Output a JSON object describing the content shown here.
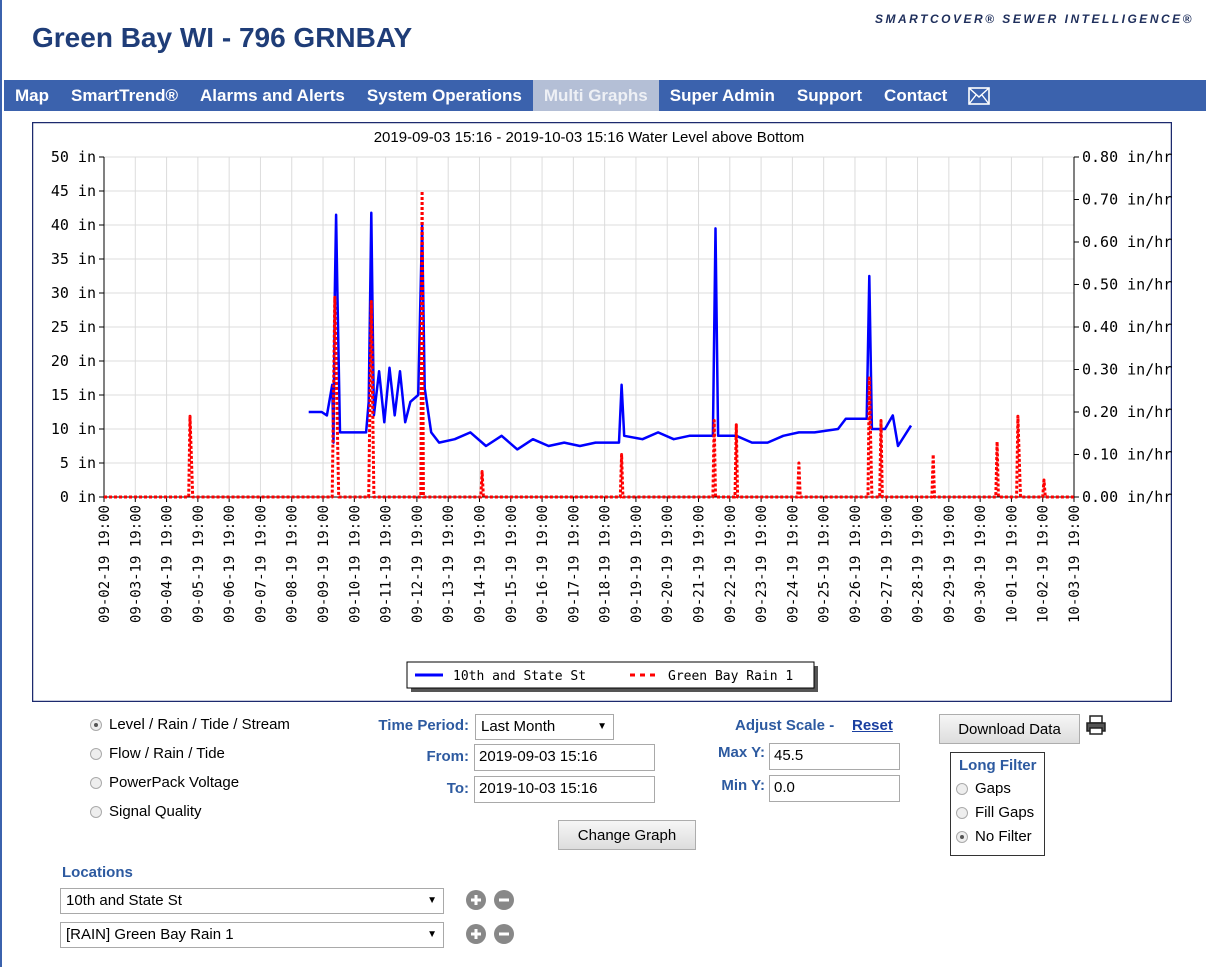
{
  "header": {
    "title": "Green Bay WI - 796 GRNBAY",
    "brand": "SMARTCOVER® SEWER INTELLIGENCE®"
  },
  "nav": {
    "items": [
      "Map",
      "SmartTrend®",
      "Alarms and Alerts",
      "System Operations",
      "Multi Graphs",
      "Super Admin",
      "Support",
      "Contact"
    ],
    "active": "Multi Graphs"
  },
  "chart_data": {
    "type": "line",
    "title": "2019-09-03 15:16 - 2019-10-03 15:16 Water Level above Bottom",
    "xlim": [
      "09-02-19 19:00",
      "10-03-19 19:00"
    ],
    "xticks": [
      "09-02-19 19:00",
      "09-03-19 19:00",
      "09-04-19 19:00",
      "09-05-19 19:00",
      "09-06-19 19:00",
      "09-07-19 19:00",
      "09-08-19 19:00",
      "09-09-19 19:00",
      "09-10-19 19:00",
      "09-11-19 19:00",
      "09-12-19 19:00",
      "09-13-19 19:00",
      "09-14-19 19:00",
      "09-15-19 19:00",
      "09-16-19 19:00",
      "09-17-19 19:00",
      "09-18-19 19:00",
      "09-19-19 19:00",
      "09-20-19 19:00",
      "09-21-19 19:00",
      "09-22-19 19:00",
      "09-23-19 19:00",
      "09-24-19 19:00",
      "09-25-19 19:00",
      "09-26-19 19:00",
      "09-27-19 19:00",
      "09-28-19 19:00",
      "09-29-19 19:00",
      "09-30-19 19:00",
      "10-01-19 19:00",
      "10-02-19 19:00",
      "10-03-19 19:00"
    ],
    "ylim": [
      0,
      50
    ],
    "yticks": [
      {
        "value": 0,
        "label": "0 in"
      },
      {
        "value": 5,
        "label": "5 in"
      },
      {
        "value": 10,
        "label": "10 in"
      },
      {
        "value": 15,
        "label": "15 in"
      },
      {
        "value": 20,
        "label": "20 in"
      },
      {
        "value": 25,
        "label": "25 in"
      },
      {
        "value": 30,
        "label": "30 in"
      },
      {
        "value": 35,
        "label": "35 in"
      },
      {
        "value": 40,
        "label": "40 in"
      },
      {
        "value": 45,
        "label": "45 in"
      },
      {
        "value": 50,
        "label": "50 in"
      }
    ],
    "y2lim": [
      0,
      0.8
    ],
    "y2ticks": [
      {
        "value": 0,
        "label": "0.00 in/hr"
      },
      {
        "value": 0.1,
        "label": "0.10 in/hr"
      },
      {
        "value": 0.2,
        "label": "0.20 in/hr"
      },
      {
        "value": 0.3,
        "label": "0.30 in/hr"
      },
      {
        "value": 0.4,
        "label": "0.40 in/hr"
      },
      {
        "value": 0.5,
        "label": "0.50 in/hr"
      },
      {
        "value": 0.6,
        "label": "0.60 in/hr"
      },
      {
        "value": 0.7,
        "label": "0.70 in/hr"
      },
      {
        "value": 0.8,
        "label": "0.80 in/hr"
      }
    ],
    "grid": true,
    "series": [
      {
        "name": "10th and State St",
        "color": "#0000ff",
        "style": "solid",
        "x": [
          "09-09-19 08:00",
          "09-09-19 18:00",
          "09-09-19 22:00",
          "09-10-19 02:00",
          "09-10-19 03:00",
          "09-10-19 04:00",
          "09-10-19 05:00",
          "09-10-19 06:00",
          "09-10-19 08:00",
          "09-11-19 04:00",
          "09-11-19 06:00",
          "09-11-19 08:00",
          "09-11-19 10:00",
          "09-11-19 14:00",
          "09-11-19 18:00",
          "09-11-19 22:00",
          "09-12-19 02:00",
          "09-12-19 06:00",
          "09-12-19 10:00",
          "09-12-19 14:00",
          "09-12-19 20:00",
          "09-12-19 23:00",
          "09-13-19 01:00",
          "09-13-19 06:00",
          "09-13-19 12:00",
          "09-14-19 00:00",
          "09-14-19 12:00",
          "09-15-19 00:00",
          "09-15-19 12:00",
          "09-16-19 00:00",
          "09-16-19 12:00",
          "09-17-19 00:00",
          "09-17-19 12:00",
          "09-18-19 00:00",
          "09-18-19 12:00",
          "09-19-19 06:00",
          "09-19-19 08:00",
          "09-19-19 10:00",
          "09-20-19 00:00",
          "09-20-19 12:00",
          "09-21-19 00:00",
          "09-21-19 12:00",
          "09-22-19 06:00",
          "09-22-19 08:00",
          "09-22-19 10:00",
          "09-23-19 00:00",
          "09-23-19 12:00",
          "09-24-19 00:00",
          "09-24-19 12:00",
          "09-25-19 00:00",
          "09-25-19 12:00",
          "09-26-19 06:00",
          "09-26-19 12:00",
          "09-27-19 04:00",
          "09-27-19 06:00",
          "09-27-19 08:00",
          "09-27-19 18:00",
          "09-28-19 00:00",
          "09-28-19 04:00",
          "09-28-19 14:00"
        ],
        "values": [
          12.5,
          12.5,
          12,
          16.5,
          8,
          30,
          41.5,
          30,
          9.5,
          9.5,
          14,
          41.8,
          12,
          18.5,
          11,
          19,
          12,
          18.5,
          11,
          14,
          15,
          40,
          16,
          9.5,
          8,
          8.5,
          9.5,
          7.5,
          9,
          7,
          8.5,
          7.5,
          8,
          7.5,
          8,
          8,
          16.5,
          9,
          8.5,
          9.5,
          8.5,
          9,
          9,
          39.5,
          9,
          9,
          8,
          8,
          9,
          9.5,
          9.5,
          10,
          11.5,
          11.5,
          32.5,
          10,
          10,
          12,
          7.5,
          10.5
        ]
      },
      {
        "name": "Green Bay Rain 1",
        "color": "#ff0000",
        "style": "dashed",
        "axis": "y2",
        "x": [
          "09-02-19 19:00",
          "09-05-19 12:00",
          "09-05-19 13:00",
          "09-05-19 15:00",
          "09-10-19 02:00",
          "09-10-19 04:00",
          "09-10-19 07:00",
          "09-11-19 06:00",
          "09-11-19 08:00",
          "09-11-19 10:00",
          "09-12-19 22:00",
          "09-12-19 23:00",
          "09-13-19 00:00",
          "09-14-19 20:00",
          "09-14-19 21:00",
          "09-14-19 22:00",
          "09-19-19 07:00",
          "09-19-19 08:00",
          "09-19-19 09:00",
          "09-22-19 06:00",
          "09-22-19 07:00",
          "09-22-19 08:00",
          "09-22-19 23:00",
          "09-23-19 00:00",
          "09-23-19 01:00",
          "09-24-19 23:00",
          "09-25-19 00:00",
          "09-25-19 01:00",
          "09-27-19 05:00",
          "09-27-19 06:00",
          "09-27-19 08:00",
          "09-27-19 14:00",
          "09-27-19 15:00",
          "09-27-19 16:00",
          "09-29-19 06:00",
          "09-29-19 07:00",
          "09-29-19 08:00",
          "10-01-19 07:00",
          "10-01-19 08:00",
          "10-01-19 09:00",
          "10-01-19 23:00",
          "10-02-19 00:00",
          "10-02-19 02:00",
          "10-02-19 19:00",
          "10-02-19 20:00",
          "10-02-19 21:00",
          "10-03-19 19:00"
        ],
        "values": [
          0,
          0,
          0.19,
          0,
          0,
          0.47,
          0,
          0,
          0.46,
          0,
          0,
          0.72,
          0,
          0,
          0.06,
          0,
          0,
          0.1,
          0,
          0,
          0.18,
          0,
          0,
          0.17,
          0,
          0,
          0.08,
          0,
          0,
          0.28,
          0,
          0,
          0.18,
          0,
          0,
          0.1,
          0,
          0,
          0.13,
          0,
          0,
          0.19,
          0,
          0,
          0.04,
          0,
          0
        ]
      }
    ]
  },
  "controls": {
    "graph_types": {
      "options": [
        "Level / Rain / Tide / Stream",
        "Flow / Rain / Tide",
        "PowerPack Voltage",
        "Signal Quality"
      ],
      "selected": "Level / Rain / Tide / Stream"
    },
    "time_period": {
      "label": "Time Period:",
      "value": "Last Month"
    },
    "from": {
      "label": "From:",
      "value": "2019-09-03 15:16"
    },
    "to": {
      "label": "To:",
      "value": "2019-10-03 15:16"
    },
    "adjust_scale": {
      "label": "Adjust Scale -",
      "reset": "Reset"
    },
    "max_y": {
      "label": "Max Y:",
      "value": "45.5"
    },
    "min_y": {
      "label": "Min Y:",
      "value": "0.0"
    },
    "change_graph": "Change Graph",
    "download": "Download Data",
    "long_filter": {
      "title": "Long Filter",
      "options": [
        "Gaps",
        "Fill Gaps",
        "No Filter"
      ],
      "selected": "No Filter"
    },
    "locations": {
      "label": "Locations",
      "selected": [
        "10th and State St",
        "[RAIN] Green Bay Rain 1"
      ]
    }
  }
}
